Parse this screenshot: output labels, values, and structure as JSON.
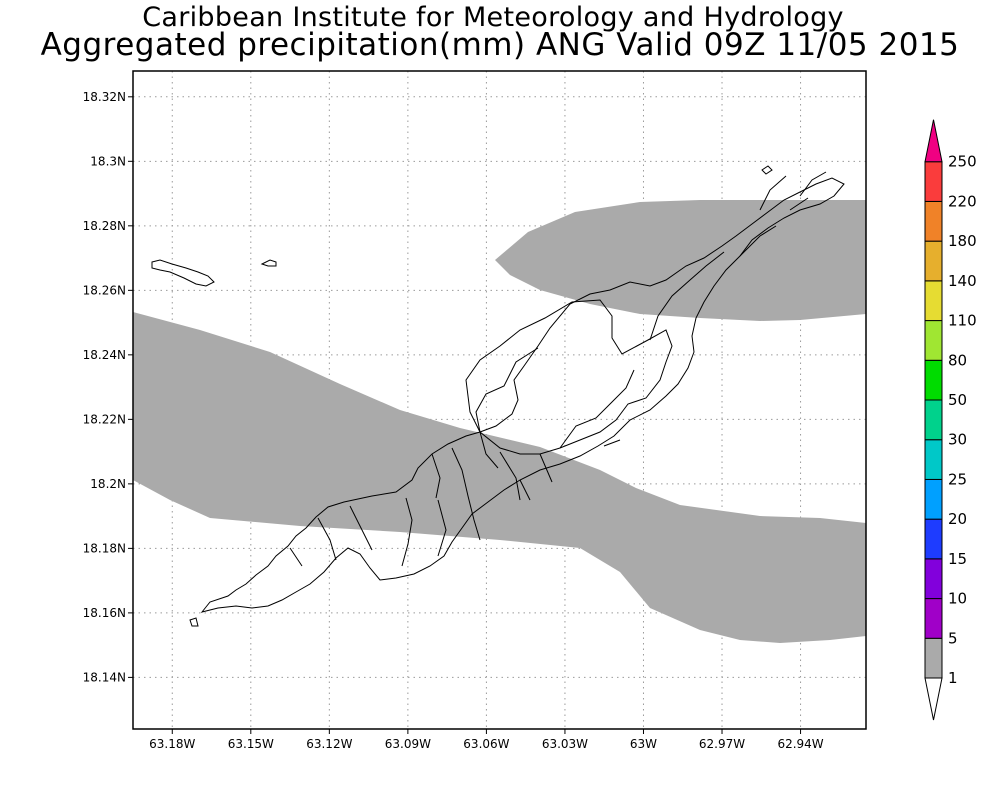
{
  "header": {
    "organization": "Caribbean Institute for Meteorology and Hydrology",
    "product": "Aggregated precipitation(mm) ANG Valid 09Z 11/05 2015"
  },
  "map": {
    "region": "Anguilla",
    "lon_range": [
      -63.195,
      -62.915
    ],
    "lat_range": [
      18.124,
      18.328
    ],
    "lat_ticks": [
      {
        "value": 18.32,
        "label": "18.32N"
      },
      {
        "value": 18.3,
        "label": "18.3N"
      },
      {
        "value": 18.28,
        "label": "18.28N"
      },
      {
        "value": 18.26,
        "label": "18.26N"
      },
      {
        "value": 18.24,
        "label": "18.24N"
      },
      {
        "value": 18.22,
        "label": "18.22N"
      },
      {
        "value": 18.2,
        "label": "18.2N"
      },
      {
        "value": 18.18,
        "label": "18.18N"
      },
      {
        "value": 18.16,
        "label": "18.16N"
      },
      {
        "value": 18.14,
        "label": "18.14N"
      }
    ],
    "lon_ticks": [
      {
        "value": -63.18,
        "label": "63.18W"
      },
      {
        "value": -63.15,
        "label": "63.15W"
      },
      {
        "value": -63.12,
        "label": "63.12W"
      },
      {
        "value": -63.09,
        "label": "63.09W"
      },
      {
        "value": -63.06,
        "label": "63.06W"
      },
      {
        "value": -63.03,
        "label": "63.03W"
      },
      {
        "value": -63.0,
        "label": "63W"
      },
      {
        "value": -62.97,
        "label": "62.97W"
      },
      {
        "value": -62.94,
        "label": "62.94W"
      }
    ],
    "grid": true,
    "precip_shading": {
      "range_mm": "1-5",
      "color": "#aaaaaa"
    }
  },
  "colorbar": {
    "orientation": "vertical",
    "placement": "right",
    "bins": [
      {
        "label": "1",
        "color": "#aaaaaa"
      },
      {
        "label": "5",
        "color": "#a000c8"
      },
      {
        "label": "10",
        "color": "#8200dc"
      },
      {
        "label": "15",
        "color": "#1e3cff"
      },
      {
        "label": "20",
        "color": "#00a0ff"
      },
      {
        "label": "25",
        "color": "#00c8c8"
      },
      {
        "label": "30",
        "color": "#00d28c"
      },
      {
        "label": "50",
        "color": "#00dc00"
      },
      {
        "label": "80",
        "color": "#a0e632"
      },
      {
        "label": "110",
        "color": "#e6dc32"
      },
      {
        "label": "140",
        "color": "#e6af2d"
      },
      {
        "label": "180",
        "color": "#f08228"
      },
      {
        "label": "220",
        "color": "#fa3c3c"
      },
      {
        "label": "250",
        "color": "#f00082"
      }
    ],
    "min_color": "#ffffff"
  }
}
